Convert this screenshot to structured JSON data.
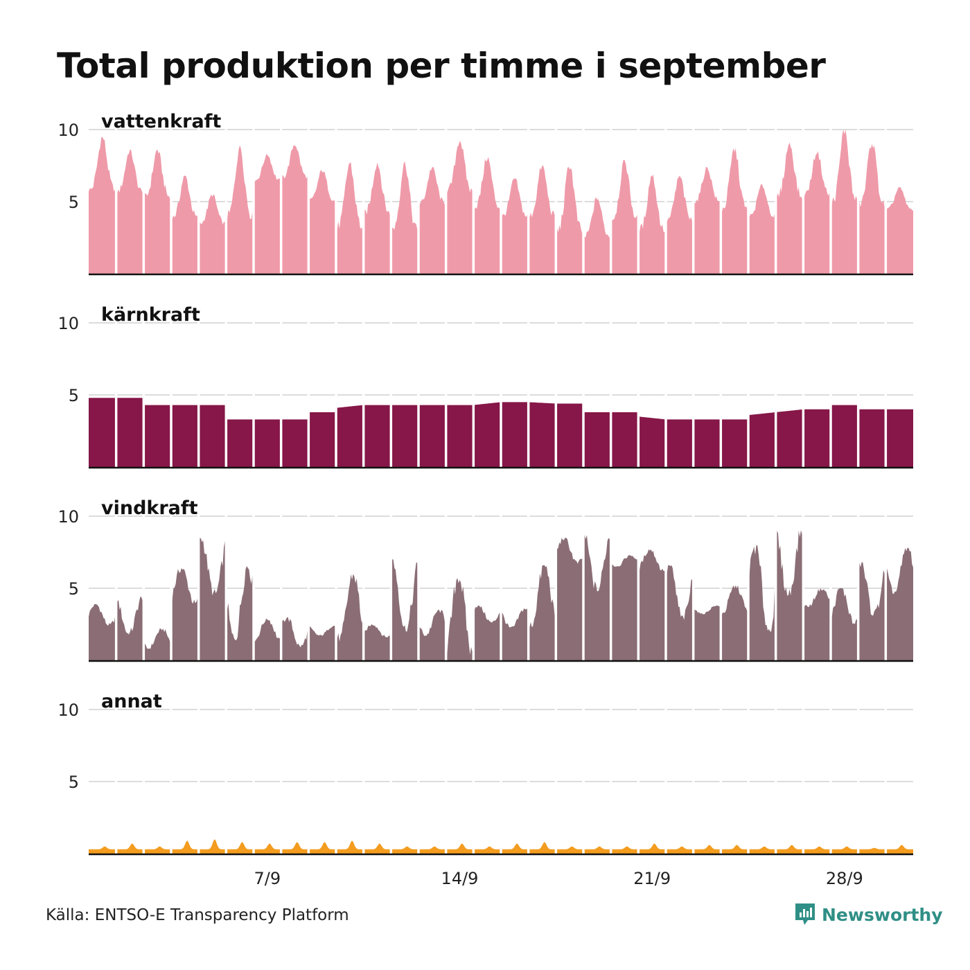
{
  "title": "Total produktion per timme i september",
  "source": "Källa: ENTSO-E Transparency Platform",
  "brand": {
    "name": "Newsworthy",
    "icon": "newsworthy-logo-icon",
    "color": "#2f8f86"
  },
  "chart_data": {
    "type": "area",
    "x_unit": "hour",
    "x_range": [
      "2019-09-01 00:00",
      "2019-09-30 23:00"
    ],
    "x_ticks": [
      "7/9",
      "14/9",
      "21/9",
      "28/9"
    ],
    "ylim": [
      0,
      10
    ],
    "y_ticks": [
      "5",
      "10"
    ],
    "grid": true,
    "series": [
      {
        "name": "vattenkraft",
        "color": "#ef9aa9",
        "daily_min": [
          5.7,
          5.6,
          5.2,
          3.8,
          3.4,
          3.8,
          6.4,
          6.6,
          5.0,
          3.1,
          4.1,
          2.9,
          4.8,
          5.6,
          4.5,
          3.9,
          3.9,
          2.8,
          2.5,
          3.7,
          2.9,
          3.6,
          4.9,
          4.3,
          3.9,
          5.2,
          5.4,
          4.8,
          4.6,
          4.4
        ],
        "daily_max": [
          9.5,
          8.6,
          8.6,
          6.8,
          5.5,
          8.9,
          8.3,
          9.0,
          7.2,
          7.7,
          7.7,
          7.8,
          7.4,
          9.3,
          8.1,
          6.6,
          7.5,
          7.6,
          5.3,
          7.9,
          6.9,
          6.8,
          7.4,
          8.7,
          6.2,
          9.1,
          8.5,
          10.0,
          9.2,
          6.0
        ]
      },
      {
        "name": "kärnkraft",
        "color": "#861748",
        "daily_level": [
          4.8,
          4.8,
          4.3,
          4.3,
          4.3,
          3.3,
          3.3,
          3.3,
          3.8,
          4.1,
          4.3,
          4.3,
          4.3,
          4.3,
          4.3,
          4.5,
          4.5,
          4.4,
          3.8,
          3.8,
          3.5,
          3.3,
          3.3,
          3.3,
          3.6,
          3.8,
          4.0,
          4.3,
          4.0,
          4.0
        ]
      },
      {
        "name": "vindkraft",
        "color": "#8a6d75",
        "daily_min": [
          2.4,
          1.8,
          0.8,
          3.9,
          4.5,
          1.4,
          1.3,
          0.9,
          1.7,
          1.3,
          1.6,
          2.0,
          1.7,
          0.4,
          2.6,
          2.2,
          2.3,
          6.7,
          4.8,
          6.5,
          6.2,
          2.8,
          3.2,
          3.2,
          2.0,
          4.5,
          3.7,
          2.5,
          3.1,
          4.6
        ],
        "daily_max": [
          3.9,
          4.4,
          2.2,
          6.4,
          8.5,
          6.6,
          2.9,
          3.0,
          2.4,
          6.0,
          2.5,
          7.0,
          3.5,
          5.9,
          3.8,
          3.6,
          6.6,
          8.5,
          8.8,
          7.3,
          7.7,
          6.6,
          3.8,
          5.2,
          8.0,
          9.1,
          5.0,
          5.0,
          6.8,
          7.8
        ]
      },
      {
        "name": "annat",
        "color": "#f39c1f",
        "daily_min": [
          0.3,
          0.3,
          0.3,
          0.3,
          0.3,
          0.3,
          0.3,
          0.3,
          0.3,
          0.3,
          0.3,
          0.3,
          0.3,
          0.3,
          0.3,
          0.3,
          0.3,
          0.3,
          0.3,
          0.3,
          0.3,
          0.3,
          0.3,
          0.3,
          0.3,
          0.3,
          0.3,
          0.3,
          0.3,
          0.3
        ],
        "daily_max": [
          0.5,
          0.7,
          0.5,
          0.9,
          1.0,
          0.8,
          0.7,
          0.8,
          0.8,
          0.9,
          0.7,
          0.5,
          0.5,
          0.7,
          0.5,
          0.7,
          0.8,
          0.5,
          0.5,
          0.5,
          0.7,
          0.5,
          0.6,
          0.6,
          0.5,
          0.6,
          0.5,
          0.5,
          0.4,
          0.6
        ]
      }
    ]
  }
}
